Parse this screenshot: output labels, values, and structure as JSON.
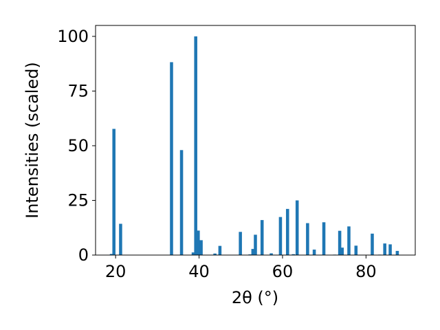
{
  "chart_data": {
    "type": "bar",
    "title": "",
    "xlabel": "2θ (°)",
    "ylabel": "Intensities (scaled)",
    "xlim": [
      15.2,
      91.8
    ],
    "ylim": [
      0,
      105
    ],
    "xticks": [
      "20",
      "40",
      "60",
      "80"
    ],
    "yticks": [
      "0",
      "25",
      "50",
      "75",
      "100"
    ],
    "grid": false,
    "legend": "none",
    "bar_color": "#1f77b4",
    "bar_width": 0.75,
    "series": [
      {
        "x": [
          19.0,
          19.6,
          21.2,
          33.4,
          35.8,
          38.6,
          39.2,
          39.8,
          40.5,
          43.8,
          45.0,
          49.9,
          52.2,
          52.9,
          53.5,
          55.1,
          57.3,
          59.5,
          61.2,
          62.6,
          63.5,
          66.0,
          67.6,
          69.9,
          72.5,
          73.7,
          74.3,
          75.9,
          77.6,
          81.5,
          83.3,
          84.5,
          85.8,
          87.5
        ],
        "values": [
          0.5,
          57.7,
          14.3,
          88.2,
          48.0,
          1.2,
          100.0,
          11.2,
          6.8,
          0.7,
          4.2,
          10.6,
          0.3,
          2.8,
          9.3,
          16.0,
          0.8,
          17.4,
          21.1,
          0.4,
          25.0,
          14.6,
          2.5,
          15.0,
          0.2,
          11.1,
          3.4,
          13.1,
          4.3,
          9.8,
          0.2,
          5.3,
          4.9,
          1.9
        ]
      }
    ]
  }
}
